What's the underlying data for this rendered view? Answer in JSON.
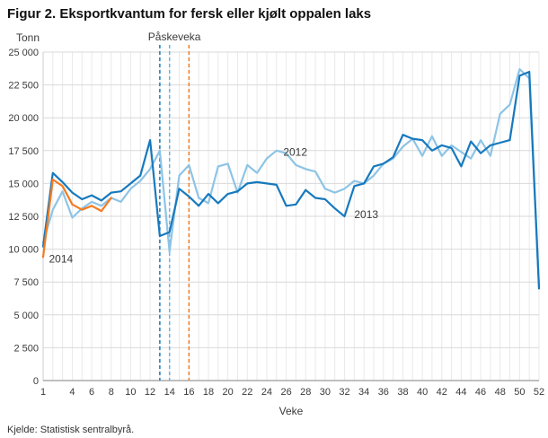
{
  "title": "Figur 2. Eksportkvantum for fersk eller kjølt oppalen laks",
  "source": "Kjelde: Statistisk sentralbyrå.",
  "chart_data": {
    "type": "line",
    "title": "Figur 2. Eksportkvantum for fersk eller kjølt oppalen laks",
    "ylabel": "Tonn",
    "xlabel": "Veke",
    "ylim": [
      0,
      25000
    ],
    "ytick_step": 2500,
    "xticks": [
      1,
      4,
      6,
      8,
      10,
      12,
      14,
      16,
      18,
      20,
      22,
      24,
      26,
      28,
      30,
      32,
      34,
      36,
      38,
      40,
      42,
      44,
      46,
      48,
      50,
      52
    ],
    "grid": true,
    "annotation": {
      "text": "Påskeveka",
      "week": 14.5
    },
    "easter_lines": [
      {
        "year": "2013",
        "week": 13,
        "color": "#1779bd"
      },
      {
        "year": "2012",
        "week": 14,
        "color": "#6db3dc"
      },
      {
        "year": "2014",
        "week": 16,
        "color": "#f47b20"
      }
    ],
    "series": [
      {
        "name": "2012",
        "color": "#8dc4e6",
        "start_week": 1,
        "values": [
          10500,
          13000,
          14400,
          12400,
          13100,
          13600,
          13300,
          13900,
          13600,
          14600,
          15200,
          16100,
          17500,
          9800,
          15600,
          16400,
          13900,
          13500,
          16300,
          16500,
          14300,
          16400,
          15800,
          16900,
          17500,
          17300,
          16400,
          16100,
          15900,
          14600,
          14300,
          14600,
          15200,
          15000,
          15600,
          16500,
          16900,
          17800,
          18400,
          17100,
          18600,
          17100,
          17900,
          17400,
          16900,
          18300,
          17100,
          20300,
          21000,
          23700,
          23000,
          7100
        ]
      },
      {
        "name": "2013",
        "color": "#1779bd",
        "start_week": 1,
        "values": [
          10200,
          15800,
          15100,
          14300,
          13800,
          14100,
          13700,
          14300,
          14400,
          15000,
          15600,
          18300,
          11000,
          11300,
          14600,
          14000,
          13300,
          14200,
          13500,
          14200,
          14400,
          15000,
          15100,
          15000,
          14900,
          13300,
          13400,
          14500,
          13900,
          13800,
          13100,
          12500,
          14800,
          15000,
          16300,
          16500,
          17000,
          18700,
          18400,
          18300,
          17500,
          17900,
          17700,
          16300,
          18200,
          17300,
          17900,
          18100,
          18300,
          23200,
          23500,
          7000
        ]
      },
      {
        "name": "2014",
        "color": "#f47b20",
        "start_week": 1,
        "values": [
          9400,
          15300,
          14800,
          13400,
          13000,
          13300,
          12900,
          13900
        ]
      }
    ],
    "series_labels": [
      {
        "text": "2012",
        "week": 25.7,
        "value": 17400
      },
      {
        "text": "2013",
        "week": 33.0,
        "value": 12650
      },
      {
        "text": "2014",
        "week": 1.6,
        "value": 9250
      }
    ],
    "legend_position": "inline",
    "colors": {
      "grid_h": "#d9d9d9",
      "grid_v": "#e9e9e9",
      "axis_x": "#9a9a9a",
      "axis_y": "#cfcfcf",
      "text": "#3a3a3a"
    }
  }
}
